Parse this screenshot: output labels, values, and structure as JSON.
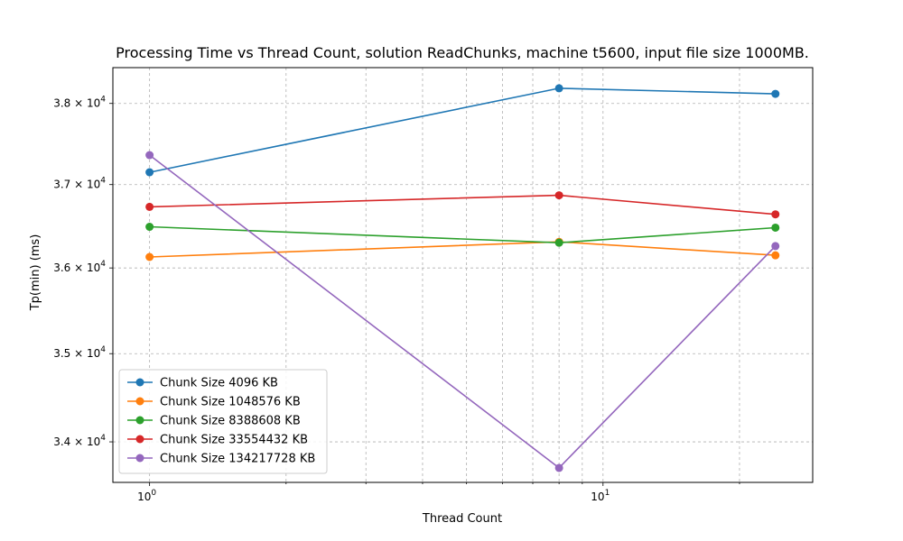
{
  "chart_data": {
    "type": "line",
    "title": "Processing Time vs Thread Count, solution ReadChunks, machine t5600, input file size 1000MB.",
    "xlabel": "Thread Count",
    "ylabel": "Tp(min) (ms)",
    "xscale": "log",
    "yscale": "log",
    "xlim": [
      0.83,
      29.0
    ],
    "ylim": [
      33550,
      38450
    ],
    "x_tick_labels": [
      {
        "value": 1,
        "base": "10",
        "exp": "0"
      },
      {
        "value": 10,
        "base": "10",
        "exp": "1"
      }
    ],
    "y_tick_labels": [
      {
        "value": 34000,
        "mant": "3.4 × 10",
        "exp": "4"
      },
      {
        "value": 35000,
        "mant": "3.5 × 10",
        "exp": "4"
      },
      {
        "value": 36000,
        "mant": "3.6 × 10",
        "exp": "4"
      },
      {
        "value": 37000,
        "mant": "3.7 × 10",
        "exp": "4"
      },
      {
        "value": 38000,
        "mant": "3.8 × 10",
        "exp": "4"
      }
    ],
    "x": [
      1,
      8,
      24
    ],
    "grid": true,
    "legend_position": "lower-left",
    "series": [
      {
        "name": "Chunk Size 4096 KB",
        "color": "#1f77b4",
        "values": [
          37150,
          38190,
          38120
        ]
      },
      {
        "name": "Chunk Size 1048576 KB",
        "color": "#ff7f0e",
        "values": [
          36130,
          36310,
          36150
        ]
      },
      {
        "name": "Chunk Size 8388608 KB",
        "color": "#2ca02c",
        "values": [
          36490,
          36300,
          36480
        ]
      },
      {
        "name": "Chunk Size 33554432 KB",
        "color": "#d62728",
        "values": [
          36730,
          36870,
          36640
        ]
      },
      {
        "name": "Chunk Size 134217728 KB",
        "color": "#9467bd",
        "values": [
          37360,
          33710,
          36260
        ]
      }
    ]
  }
}
